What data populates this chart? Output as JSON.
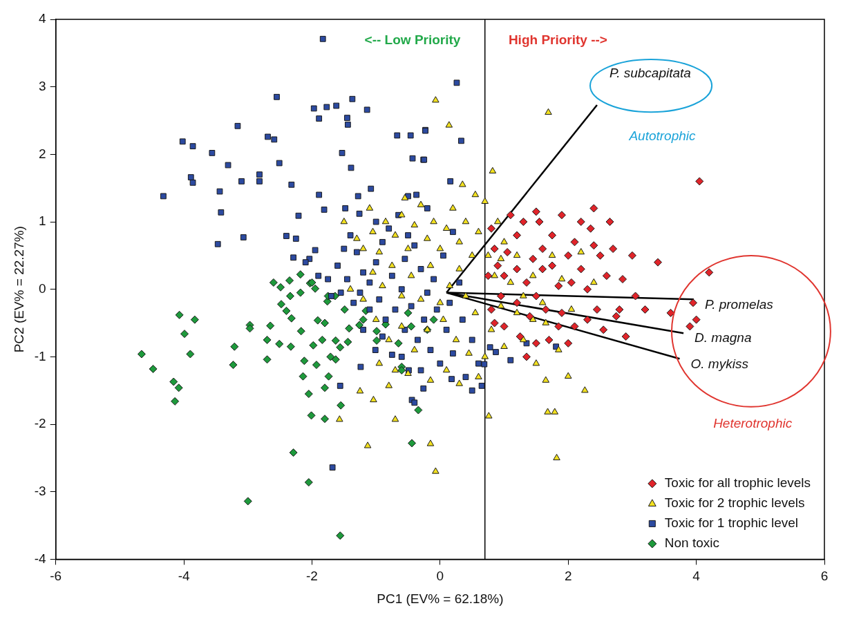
{
  "chart_data": {
    "type": "scatter",
    "xlabel": "PC1 (EV% = 62.18%)",
    "ylabel": "PC2 (EV% = 22.27%)",
    "xlim": [
      -6,
      6
    ],
    "ylim": [
      -4,
      4
    ],
    "xticks": [
      -6,
      -4,
      -2,
      0,
      2,
      4,
      6
    ],
    "yticks": [
      -4,
      -3,
      -2,
      -1,
      0,
      1,
      2,
      3,
      4
    ],
    "grid": false,
    "legend": "bottom right",
    "ref_lines": [
      {
        "axis": "x",
        "value": 0.7,
        "color": "#000000"
      }
    ],
    "annotations": [
      "<-- Low Priority",
      "High Priority -->",
      "Autotrophic",
      "Heterotrophic"
    ],
    "series": [
      {
        "name": "Toxic for all trophic levels",
        "marker": "diamond",
        "color": "#e0242a",
        "x": [
          4.05,
          4.2,
          3.95,
          4.0,
          3.9,
          3.4,
          3.6,
          3.0,
          3.05,
          2.85,
          2.7,
          2.65,
          2.4,
          2.35,
          2.2,
          2.1,
          2.0,
          2.2,
          2.5,
          2.6,
          2.3,
          2.45,
          2.8,
          2.75,
          2.3,
          2.55,
          2.1,
          1.9,
          1.85,
          1.75,
          1.6,
          1.55,
          1.5,
          1.3,
          1.2,
          1.05,
          0.9,
          0.8,
          1.0,
          1.2,
          1.35,
          1.5,
          1.65,
          1.4,
          1.2,
          0.95,
          0.8,
          1.0,
          1.25,
          1.5,
          1.7,
          1.85,
          2.0,
          1.35,
          0.85,
          0.75,
          1.75,
          1.9,
          2.05,
          1.6,
          2.9,
          3.2,
          1.1,
          0.85,
          2.4,
          1.45
        ],
        "values": [
          1.6,
          0.25,
          -0.2,
          -0.45,
          -0.55,
          0.4,
          -0.35,
          0.5,
          -0.1,
          0.15,
          0.6,
          1.0,
          1.2,
          0.9,
          1.0,
          0.7,
          0.5,
          0.3,
          0.5,
          0.2,
          0.0,
          -0.3,
          -0.3,
          -0.4,
          -0.45,
          -0.6,
          -0.55,
          -0.35,
          0.05,
          0.35,
          0.6,
          1.0,
          1.15,
          1.0,
          0.8,
          0.55,
          0.35,
          0.9,
          0.2,
          0.3,
          0.1,
          -0.1,
          -0.3,
          -0.4,
          -0.2,
          -0.1,
          -0.3,
          -0.55,
          -0.7,
          -0.8,
          -0.75,
          -0.55,
          -0.8,
          -1.0,
          -0.5,
          0.2,
          0.8,
          1.1,
          0.1,
          0.3,
          -0.7,
          -0.3,
          1.1,
          0.6,
          0.65,
          0.45
        ]
      },
      {
        "name": "Toxic for 2 trophic levels",
        "marker": "triangle",
        "color": "#f2e020",
        "x": [
          1.69,
          0.82,
          -0.07,
          0.14,
          -0.07,
          1.82,
          -0.15,
          0.76,
          1.68,
          1.79,
          2.26,
          2.0,
          -1.57,
          -1.13,
          -0.7,
          -1.25,
          -1.04,
          -0.8,
          -1.3,
          -1.2,
          -1.05,
          -0.95,
          -0.85,
          -0.7,
          -0.6,
          -0.5,
          -0.4,
          -0.3,
          -0.2,
          -0.1,
          0.0,
          0.1,
          0.2,
          0.3,
          0.4,
          0.5,
          0.6,
          0.7,
          0.75,
          0.85,
          0.95,
          1.1,
          1.2,
          1.3,
          1.45,
          1.6,
          1.75,
          1.9,
          2.05,
          2.2,
          2.4,
          1.45,
          1.2,
          0.95,
          0.8,
          1.0,
          1.3,
          1.65,
          1.85,
          1.5,
          1.65,
          0.7,
          0.55,
          0.4,
          0.3,
          0.15,
          0.0,
          -0.15,
          -0.3,
          -0.45,
          -0.6,
          -0.75,
          -0.9,
          -1.05,
          -1.2,
          -1.4,
          -1.0,
          -0.8,
          -0.6,
          -0.4,
          -0.2,
          0.05,
          0.25,
          0.45,
          0.6,
          0.3,
          0.1,
          -0.15,
          -0.5,
          -0.7,
          -0.95,
          -1.5,
          -1.1,
          0.9,
          1.0,
          0.55,
          0.35,
          -0.55
        ],
        "values": [
          2.62,
          1.75,
          2.8,
          2.43,
          -2.7,
          -2.5,
          -2.29,
          -1.88,
          -1.82,
          -1.82,
          -1.5,
          -1.29,
          -1.93,
          -2.32,
          -1.93,
          -1.51,
          -1.64,
          -1.43,
          0.75,
          0.6,
          0.85,
          0.55,
          1.0,
          0.8,
          1.1,
          0.6,
          0.95,
          1.25,
          0.75,
          1.0,
          0.6,
          0.9,
          1.2,
          0.7,
          1.0,
          0.5,
          0.85,
          1.3,
          0.5,
          0.2,
          0.45,
          0.1,
          0.5,
          -0.1,
          0.2,
          -0.2,
          0.5,
          0.15,
          -0.3,
          0.55,
          0.1,
          -0.45,
          -0.35,
          -0.25,
          -0.6,
          -0.85,
          -0.75,
          -0.5,
          -0.9,
          -1.1,
          -1.35,
          -1.0,
          -0.35,
          -0.1,
          0.3,
          0.05,
          -0.2,
          0.35,
          -0.15,
          0.2,
          -0.1,
          0.35,
          0.05,
          0.25,
          -0.15,
          0.0,
          -0.45,
          -0.75,
          -0.55,
          -0.9,
          -0.6,
          -0.45,
          -0.75,
          -0.95,
          -1.3,
          -1.4,
          -1.2,
          -1.35,
          -1.25,
          -1.2,
          -1.1,
          1.0,
          1.2,
          1.0,
          0.7,
          1.4,
          1.55,
          1.35
        ]
      },
      {
        "name": "Toxic for 1 trophic level",
        "marker": "square",
        "color": "#2c4aa0",
        "x": [
          -1.83,
          -2.55,
          -1.97,
          -1.77,
          -1.62,
          -1.37,
          -1.14,
          -1.89,
          -1.45,
          -1.44,
          -3.16,
          -4.02,
          -3.86,
          -3.56,
          -2.69,
          -2.59,
          -3.31,
          -2.51,
          -3.89,
          -3.86,
          -3.1,
          -2.82,
          -2.82,
          -2.32,
          -4.32,
          -3.44,
          -3.42,
          -3.47,
          -3.07,
          -2.21,
          -2.4,
          -2.29,
          -2.04,
          -1.95,
          -1.89,
          -1.81,
          -1.53,
          -1.39,
          -1.28,
          -1.08,
          -1.48,
          -1.26,
          -0.67,
          -0.46,
          -0.23,
          -0.43,
          -0.26,
          -0.5,
          -0.37,
          0.26,
          -0.23,
          0.33,
          -0.25,
          0.16,
          -1.68,
          -1.56,
          -1.01,
          -0.75,
          -1.24,
          -0.26,
          -0.44,
          -0.4,
          -0.49,
          1.1,
          1.35,
          1.81,
          0.65,
          0.69,
          0.18,
          0.78,
          0.87,
          -1.9,
          -1.75,
          -1.6,
          -1.5,
          -1.4,
          -1.3,
          -1.2,
          -1.1,
          -1.0,
          -0.9,
          -0.8,
          -0.75,
          -0.6,
          -0.55,
          -0.4,
          -0.3,
          -0.2,
          -0.1,
          0.05,
          0.2,
          -1.7,
          -1.55,
          -1.35,
          -1.25,
          -1.1,
          -0.95,
          -0.85,
          -0.7,
          -0.55,
          -0.45,
          -0.35,
          -0.25,
          -0.15,
          -0.05,
          0.1,
          0.2,
          0.35,
          0.5,
          0.6,
          0.5,
          0.4,
          -0.9,
          -1.2,
          -0.6,
          -0.3,
          0.0,
          0.15,
          0.3,
          -1.45,
          -2.1,
          -2.25,
          -1.0,
          -0.65,
          -0.2,
          -0.5
        ],
        "values": [
          3.71,
          2.85,
          2.68,
          2.7,
          2.72,
          2.82,
          2.66,
          2.53,
          2.54,
          2.44,
          2.42,
          2.19,
          2.12,
          2.02,
          2.26,
          2.22,
          1.84,
          1.87,
          1.66,
          1.58,
          1.6,
          1.7,
          1.6,
          1.55,
          1.38,
          1.45,
          1.14,
          0.67,
          0.77,
          1.09,
          0.79,
          0.47,
          0.45,
          0.58,
          1.4,
          1.18,
          2.02,
          1.8,
          1.38,
          1.49,
          1.2,
          1.12,
          2.28,
          2.28,
          2.36,
          1.94,
          1.92,
          1.38,
          1.4,
          3.06,
          2.35,
          2.2,
          1.92,
          1.6,
          -2.64,
          -1.43,
          -0.9,
          -0.97,
          -1.15,
          -1.47,
          -1.64,
          -1.68,
          -1.2,
          -1.05,
          -0.8,
          -0.85,
          -1.43,
          -1.11,
          -1.33,
          -0.86,
          -0.93,
          0.2,
          0.15,
          0.35,
          0.6,
          0.8,
          0.55,
          0.25,
          0.1,
          0.4,
          0.7,
          0.9,
          0.2,
          0.0,
          0.45,
          0.65,
          0.3,
          -0.05,
          0.15,
          0.5,
          0.85,
          -0.1,
          -0.05,
          -0.2,
          -0.05,
          -0.3,
          -0.15,
          -0.45,
          -0.3,
          -0.6,
          -0.25,
          -0.75,
          -0.45,
          -0.9,
          -0.3,
          -0.6,
          -0.95,
          -0.45,
          -0.75,
          -1.1,
          -1.5,
          -1.3,
          -0.7,
          -0.6,
          -1.0,
          -1.2,
          -1.1,
          -0.2,
          0.1,
          0.15,
          0.4,
          0.75,
          1.0,
          1.1,
          1.2,
          0.8
        ]
      },
      {
        "name": "Non toxic",
        "marker": "diamond",
        "color": "#1e9a3c",
        "x": [
          -4.07,
          -3.83,
          -3.99,
          -4.66,
          -3.9,
          -4.48,
          -4.16,
          -4.08,
          -4.14,
          -2.97,
          -2.97,
          -2.65,
          -3.21,
          -3.23,
          -2.7,
          -2.7,
          -2.51,
          -2.33,
          -2.17,
          -2.12,
          -1.93,
          -2.14,
          -1.74,
          -1.8,
          -2.05,
          -1.55,
          -2.01,
          -1.8,
          -2.29,
          -2.05,
          -3.0,
          -1.56,
          -0.44,
          -0.34,
          -1.98,
          -1.84,
          -1.63,
          -1.56,
          -1.44,
          -1.71,
          -1.63,
          -1.91,
          -1.8,
          -1.42,
          -1.49,
          -1.16,
          -1.26,
          -0.99,
          -0.99,
          -0.85,
          -0.6,
          -1.64,
          -1.76,
          -2.49,
          -2.48,
          -2.34,
          -2.32,
          -2.4,
          -2.18,
          -1.95,
          -2.18,
          -2.35,
          -2.03,
          -2.6,
          -2.0,
          -1.75,
          -1.2,
          -0.5,
          -0.45,
          -0.2,
          -0.1,
          -0.6,
          -0.65
        ],
        "values": [
          -0.38,
          -0.45,
          -0.66,
          -0.96,
          -0.96,
          -1.18,
          -1.37,
          -1.46,
          -1.66,
          -0.53,
          -0.58,
          -0.54,
          -0.85,
          -1.12,
          -0.75,
          -1.04,
          -0.81,
          -0.85,
          -0.62,
          -1.06,
          -1.12,
          -1.29,
          -1.29,
          -1.46,
          -1.55,
          -1.72,
          -1.87,
          -1.92,
          -2.42,
          -2.86,
          -3.14,
          -3.65,
          -2.28,
          -1.79,
          -0.83,
          -0.75,
          -0.76,
          -0.86,
          -0.78,
          -1.0,
          -1.04,
          -0.46,
          -0.5,
          -0.58,
          -0.3,
          -0.32,
          -0.53,
          -0.62,
          -0.76,
          -0.52,
          -1.15,
          -0.1,
          -0.18,
          0.03,
          -0.22,
          -0.1,
          -0.43,
          -0.32,
          -0.05,
          0.01,
          0.22,
          0.13,
          0.09,
          0.1,
          0.1,
          -0.1,
          -0.45,
          -0.35,
          -0.55,
          -0.6,
          -0.45,
          -1.2,
          -0.8
        ]
      },
      {
        "name": "P. subcapitata",
        "type": "line",
        "marker": "none",
        "color": "#000000",
        "x": [
          0.1,
          2.45
        ],
        "values": [
          -0.05,
          2.73
        ]
      },
      {
        "name": "P. promelas",
        "type": "line",
        "marker": "none",
        "color": "#000000",
        "x": [
          0.1,
          3.96
        ],
        "values": [
          -0.05,
          -0.15
        ]
      },
      {
        "name": "D. magna",
        "type": "line",
        "marker": "none",
        "color": "#000000",
        "x": [
          0.1,
          3.8
        ],
        "values": [
          -0.05,
          -0.65
        ]
      },
      {
        "name": "O. mykiss",
        "type": "line",
        "marker": "none",
        "color": "#000000",
        "x": [
          0.1,
          3.74
        ],
        "values": [
          -0.05,
          -1.03
        ]
      }
    ]
  }
}
